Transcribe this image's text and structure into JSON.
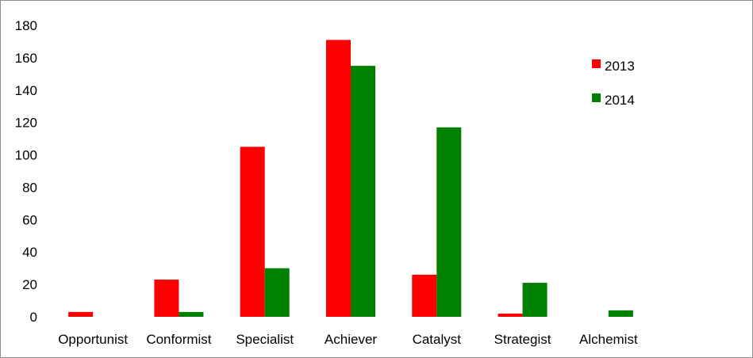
{
  "chart_data": {
    "type": "bar",
    "title": "",
    "xlabel": "",
    "ylabel": "",
    "categories": [
      "Opportunist",
      "Conformist",
      "Specialist",
      "Achiever",
      "Catalyst",
      "Strategist",
      "Alchemist"
    ],
    "series": [
      {
        "name": "2013",
        "color": "#ff0000",
        "values": [
          3,
          23,
          105,
          171,
          26,
          2,
          0
        ]
      },
      {
        "name": "2014",
        "color": "#008000",
        "values": [
          0,
          3,
          30,
          155,
          117,
          21,
          4
        ]
      }
    ],
    "ylim": [
      0,
      180
    ],
    "yticks": [
      "0",
      "20",
      "40",
      "60",
      "80",
      "100",
      "120",
      "140",
      "160",
      "180"
    ],
    "grid": false,
    "legend_position": "top-right"
  }
}
